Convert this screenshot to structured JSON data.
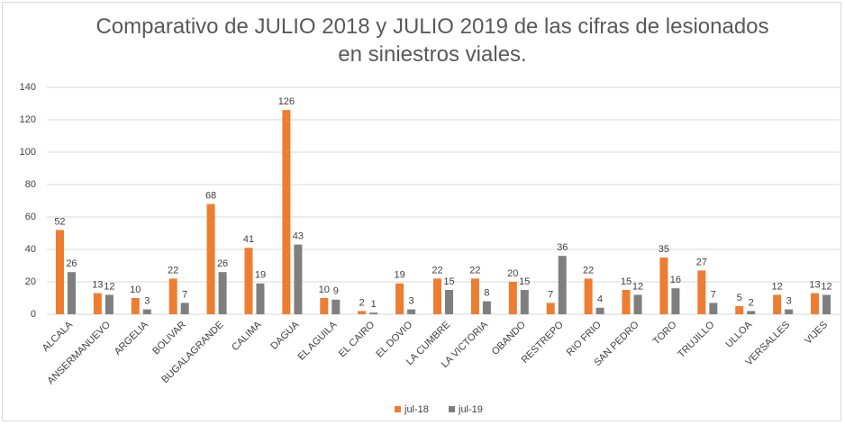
{
  "chart_data": {
    "type": "bar",
    "title": "Comparativo de JULIO 2018 y JULIO 2019 de las cifras de lesionados en siniestros viales.",
    "categories": [
      "ALCALA",
      "ANSERMANUEVO",
      "ARGELIA",
      "BOLIVAR",
      "BUGALAGRANDE",
      "CALIMA",
      "DAGUA",
      "EL AGUILA",
      "EL CAIRO",
      "EL DOVIO",
      "LA CUMBRE",
      "LA VICTORIA",
      "OBANDO",
      "RESTREPO",
      "RIO FRIO",
      "SAN PEDRO",
      "TORO",
      "TRUJILLO",
      "ULLOA",
      "VERSALLES",
      "VIJES"
    ],
    "series": [
      {
        "name": "jul-18",
        "color": "#ED7D31",
        "values": [
          52,
          13,
          10,
          22,
          68,
          41,
          126,
          10,
          2,
          19,
          22,
          22,
          20,
          7,
          22,
          15,
          35,
          27,
          5,
          12,
          13
        ]
      },
      {
        "name": "jul-19",
        "color": "#7F7F7F",
        "values": [
          26,
          12,
          3,
          7,
          26,
          19,
          43,
          9,
          1,
          3,
          15,
          8,
          15,
          36,
          4,
          12,
          16,
          7,
          2,
          3,
          12
        ]
      }
    ],
    "ylim": [
      0,
      140
    ],
    "yticks": [
      0,
      20,
      40,
      60,
      80,
      100,
      120,
      140
    ],
    "grid": true,
    "legend": "bottom"
  }
}
